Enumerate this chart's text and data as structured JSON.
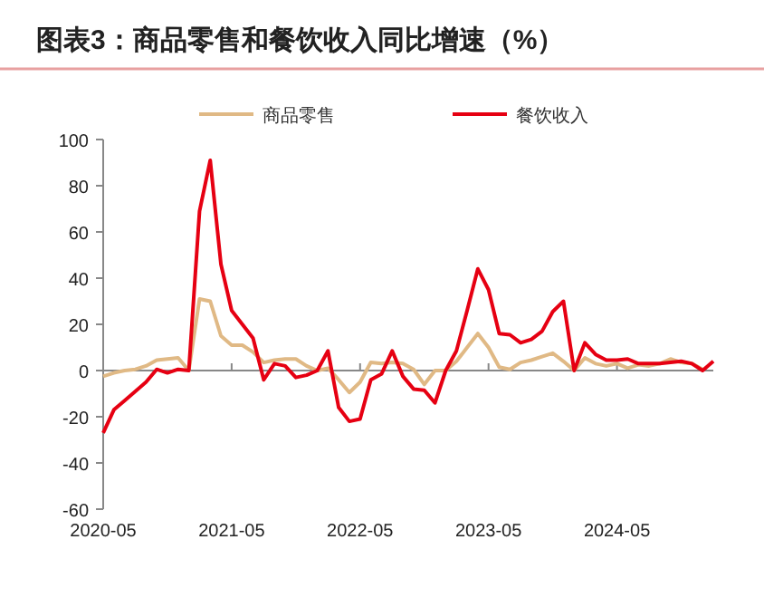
{
  "chart_data": {
    "type": "line",
    "title": "图表3：商品零售和餐饮收入同比增速（%）",
    "x": [
      "2020-05",
      "2020-06",
      "2020-07",
      "2020-08",
      "2020-09",
      "2020-10",
      "2020-11",
      "2020-12",
      "2021-01",
      "2021-02",
      "2021-03",
      "2021-04",
      "2021-05",
      "2021-06",
      "2021-07",
      "2021-08",
      "2021-09",
      "2021-10",
      "2021-11",
      "2021-12",
      "2022-01",
      "2022-02",
      "2022-03",
      "2022-04",
      "2022-05",
      "2022-06",
      "2022-07",
      "2022-08",
      "2022-09",
      "2022-10",
      "2022-11",
      "2022-12",
      "2023-01",
      "2023-02",
      "2023-03",
      "2023-04",
      "2023-05",
      "2023-06",
      "2023-07",
      "2023-08",
      "2023-09",
      "2023-10",
      "2023-11",
      "2023-12",
      "2024-01",
      "2024-02",
      "2024-03",
      "2024-04",
      "2024-05",
      "2024-06",
      "2024-07",
      "2024-08",
      "2024-09",
      "2024-10",
      "2024-11",
      "2024-12",
      "2025-01",
      "2025-02"
    ],
    "series": [
      {
        "name": "商品零售",
        "color": "#e0b985",
        "values": [
          -2.5,
          -1,
          0,
          0.5,
          2,
          4.5,
          5,
          5.5,
          0,
          31,
          30,
          15,
          11,
          11,
          8,
          3.5,
          4.5,
          5,
          5,
          2,
          0,
          1,
          -4,
          -9.5,
          -5,
          3.5,
          3,
          3.5,
          3,
          0.5,
          -6,
          0,
          0,
          4,
          10,
          16,
          10,
          1.5,
          0.5,
          3.5,
          4.5,
          6,
          7.5,
          4,
          0,
          5.5,
          3,
          2,
          3,
          1,
          2.5,
          2,
          3,
          5,
          3.5,
          3,
          0.5,
          null
        ]
      },
      {
        "name": "餐饮收入",
        "color": "#e60012",
        "values": [
          -27,
          -17,
          -13,
          -9,
          -5,
          0.5,
          -1,
          0.5,
          0,
          69,
          91,
          46,
          26,
          20,
          14,
          -4,
          3,
          2,
          -3,
          -2,
          0,
          8.5,
          -16,
          -22,
          -21,
          -4,
          -1.5,
          8.5,
          -2.5,
          -8,
          -8.5,
          -14,
          0,
          8.5,
          26,
          44,
          35,
          16,
          15.5,
          12,
          13.5,
          17,
          25.5,
          30,
          0,
          12,
          7,
          4.5,
          4.5,
          5,
          3,
          3,
          3,
          3.5,
          4,
          3,
          0,
          4
        ]
      }
    ],
    "xlim": [
      "2020-05",
      "2025-02"
    ],
    "xticks": [
      "2020-05",
      "2021-05",
      "2022-05",
      "2023-05",
      "2024-05"
    ],
    "ylim": [
      -60,
      100
    ],
    "yticks": [
      -60,
      -40,
      -20,
      0,
      20,
      40,
      60,
      80,
      100
    ],
    "legend": "top",
    "line_style": "solid",
    "marker": "none"
  }
}
